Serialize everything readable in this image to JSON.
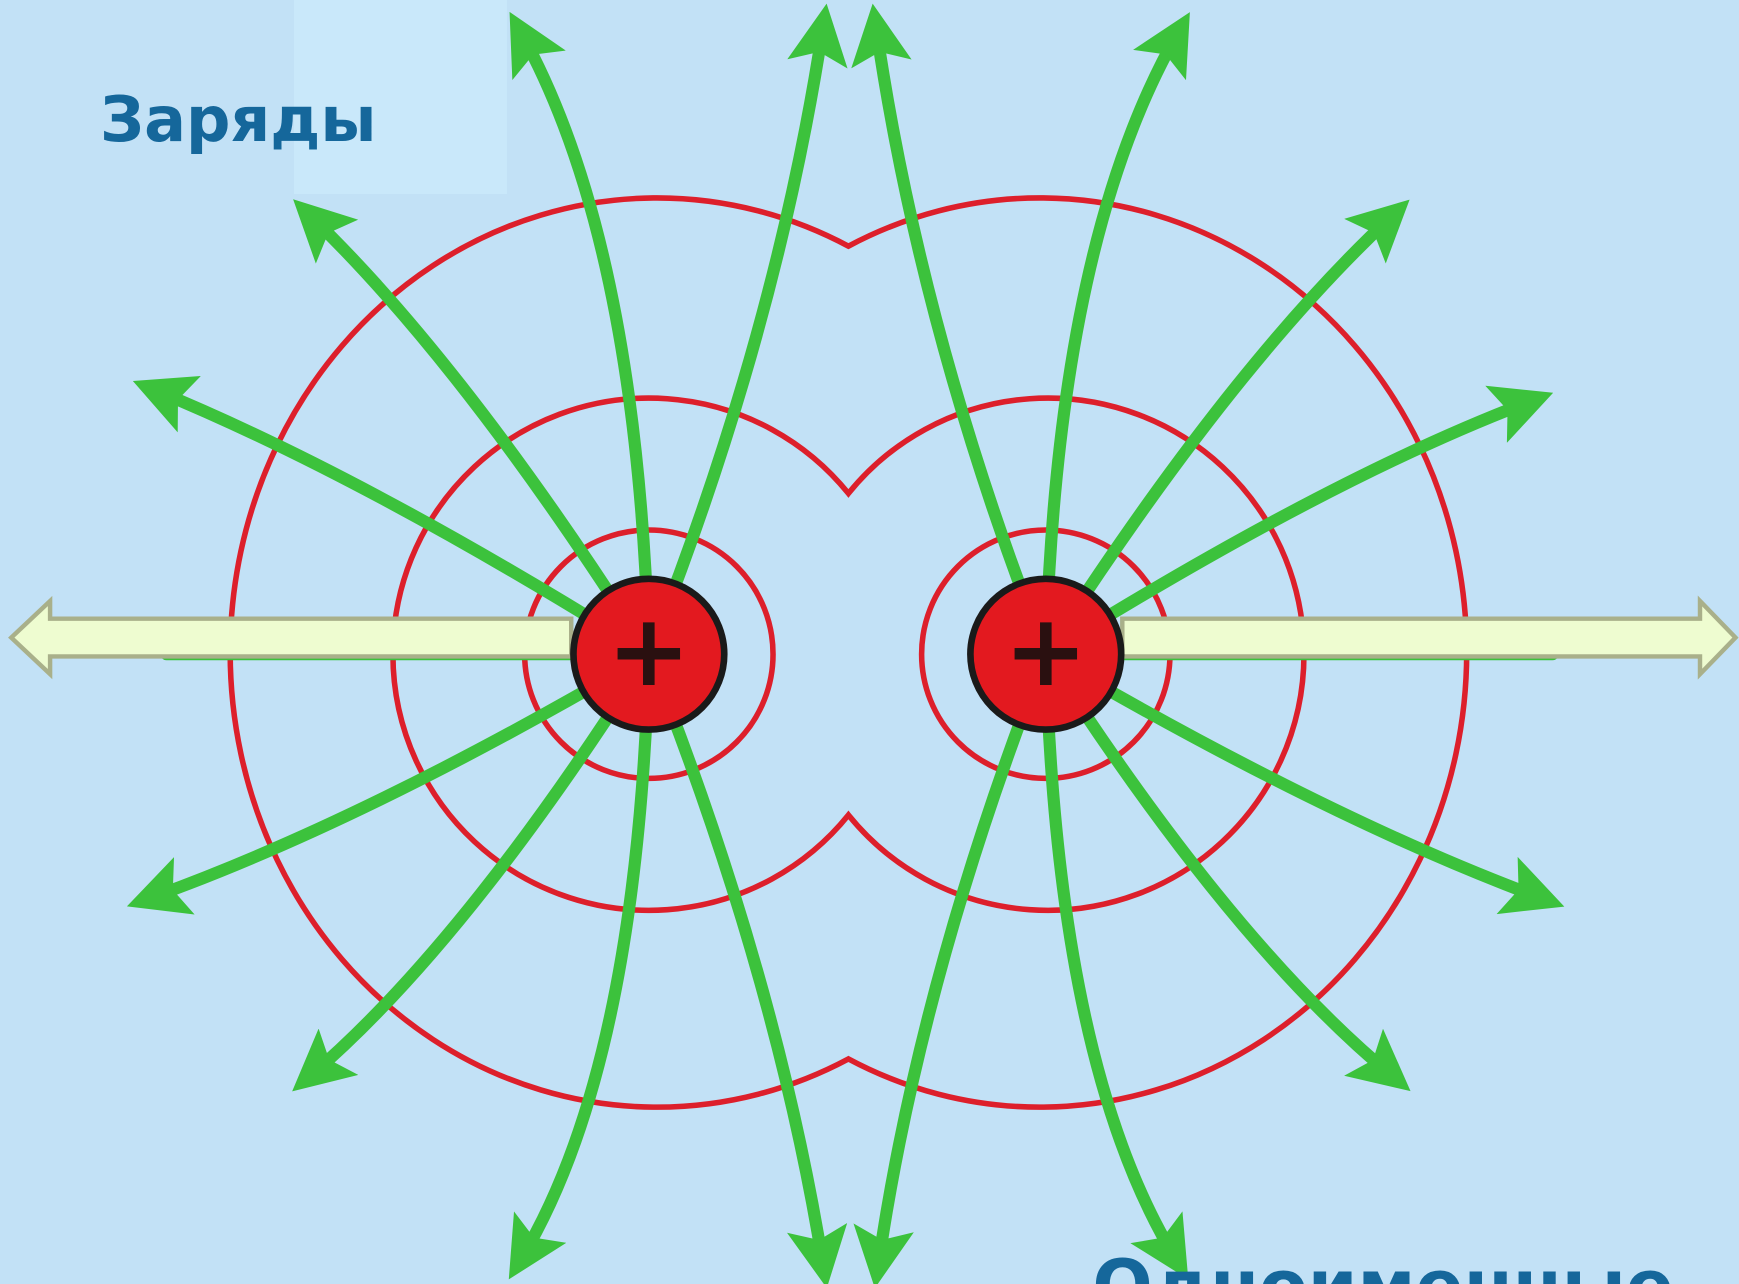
{
  "title": "Заряды",
  "caption": "Одноименные",
  "charges": [
    {
      "label": "+"
    },
    {
      "label": "+"
    }
  ]
}
